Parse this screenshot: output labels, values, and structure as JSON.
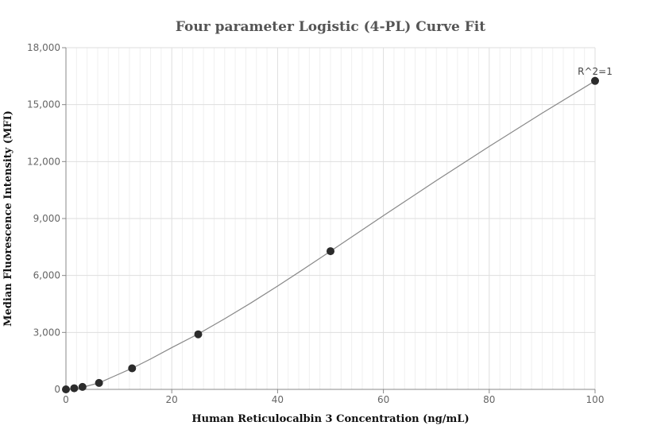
{
  "chart_data": {
    "type": "scatter",
    "title": "Four parameter Logistic (4-PL) Curve Fit",
    "xlabel": "Human Reticulocalbin 3 Concentration (ng/mL)",
    "ylabel": "Median Fluorescence Intensity (MFI)",
    "xlim": [
      0,
      100
    ],
    "ylim": [
      0,
      18000
    ],
    "x_ticks": [
      0,
      20,
      40,
      60,
      80,
      100
    ],
    "x_tick_labels": [
      "0",
      "20",
      "40",
      "60",
      "80",
      "100"
    ],
    "y_ticks": [
      0,
      3000,
      6000,
      9000,
      12000,
      15000,
      18000
    ],
    "y_tick_labels": [
      "0",
      "3,000",
      "6,000",
      "9,000",
      "12,000",
      "15,000",
      "18,000"
    ],
    "grid": true,
    "annotation": "R^2=1",
    "points": {
      "x": [
        0,
        1.5625,
        3.125,
        6.25,
        12.5,
        25,
        50,
        100
      ],
      "y": [
        0,
        60,
        130,
        340,
        1110,
        2900,
        7280,
        16250
      ]
    },
    "fit_curve": {
      "x": [
        0,
        1.5625,
        3.125,
        6.25,
        9,
        12.5,
        16,
        20,
        25,
        30,
        35,
        40,
        45,
        50,
        60,
        70,
        80,
        90,
        100
      ],
      "y": [
        0,
        40,
        110,
        340,
        680,
        1110,
        1600,
        2200,
        2920,
        3720,
        4560,
        5440,
        6350,
        7280,
        9150,
        11000,
        12800,
        14550,
        16250
      ]
    },
    "colors": {
      "point": "#2b2b2b",
      "curve": "#888888"
    }
  }
}
